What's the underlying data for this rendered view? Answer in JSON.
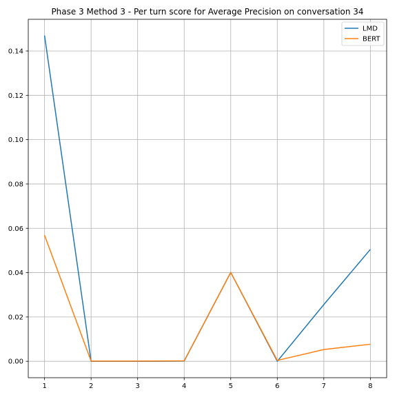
{
  "chart_data": {
    "type": "line",
    "title": "Phase 3 Method 3 - Per turn score for Average Precision on conversation 34",
    "xlabel": "",
    "ylabel": "",
    "x": [
      1,
      2,
      3,
      4,
      5,
      6,
      7,
      8
    ],
    "xticks": [
      1,
      2,
      3,
      4,
      5,
      6,
      7,
      8
    ],
    "xlim": [
      0.65,
      8.35
    ],
    "yticks": [
      0.0,
      0.02,
      0.04,
      0.06,
      0.08,
      0.1,
      0.12,
      0.14
    ],
    "ytick_labels": [
      "0.00",
      "0.02",
      "0.04",
      "0.06",
      "0.08",
      "0.10",
      "0.12",
      "0.14"
    ],
    "ylim": [
      -0.0074,
      0.1543
    ],
    "grid": true,
    "legend_position": "top-right",
    "series": [
      {
        "name": "LMD",
        "color": "#1f77b4",
        "values": [
          0.147,
          0.0,
          0.0,
          0.0001,
          0.0401,
          0.0,
          0.0256,
          0.0505
        ]
      },
      {
        "name": "BERT",
        "color": "#ff7f0e",
        "values": [
          0.0569,
          0.0001,
          0.0001,
          0.0002,
          0.0401,
          0.0004,
          0.0053,
          0.0077
        ]
      }
    ]
  }
}
